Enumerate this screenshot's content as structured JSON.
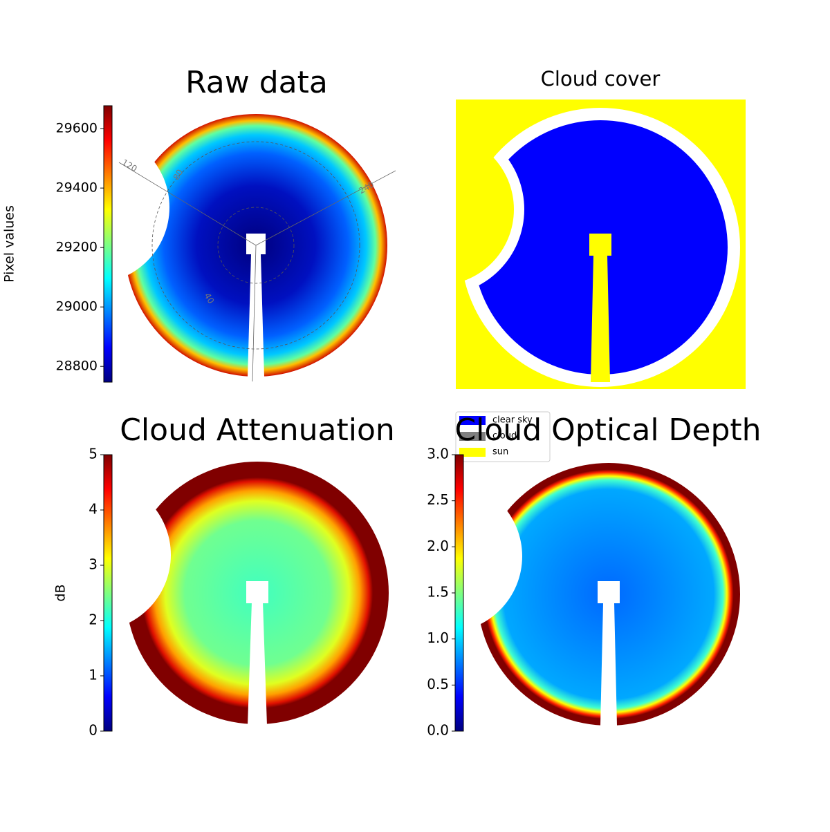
{
  "chart_data": [
    {
      "type": "image",
      "title": "Raw data",
      "colormap": "jet",
      "ylabel": "Pixel values",
      "ylim": [
        28747,
        29677
      ],
      "yticks": [
        28800,
        29000,
        29200,
        29400,
        29600
      ],
      "annotations": [
        "120",
        "80",
        "240",
        "40"
      ]
    },
    {
      "type": "image",
      "title": "Cloud cover",
      "series": [
        {
          "name": "clear sky",
          "color": "#0000ff"
        },
        {
          "name": "cloud",
          "color": "#808080"
        },
        {
          "name": "sun",
          "color": "#ffff00"
        }
      ]
    },
    {
      "type": "image",
      "title": "Cloud Attenuation",
      "colormap": "jet",
      "ylabel": "dB",
      "ylim": [
        0,
        5
      ],
      "yticks": [
        0,
        1,
        2,
        3,
        4,
        5
      ]
    },
    {
      "type": "image",
      "title": "Cloud Optical Depth",
      "colormap": "jet",
      "ylim": [
        0,
        3
      ],
      "yticks": [
        {
          "value": 0,
          "label": "0.0"
        },
        0.5,
        {
          "value": 1,
          "label": "1.0"
        },
        1.5,
        {
          "value": 2,
          "label": "2.0"
        },
        2.5,
        {
          "value": 3,
          "label": "3.0"
        }
      ]
    }
  ]
}
